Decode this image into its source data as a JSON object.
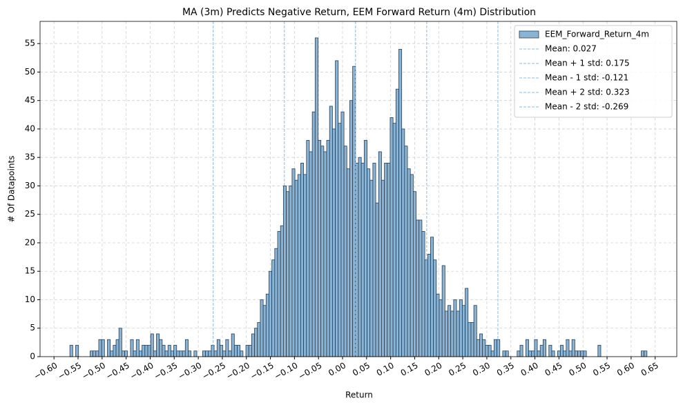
{
  "chart_data": {
    "type": "histogram",
    "title": "MA (3m) Predicts Negative Return, EEM Forward Return (4m) Distribution",
    "x_label": "Return",
    "y_label": "# Of Datapoints",
    "series": [
      {
        "name": "EEM_Forward_Return_4m",
        "color": "#8ab4d6",
        "edgecolor": "#2b3a4a",
        "bins": [
          -0.567,
          -0.561,
          -0.555,
          -0.549,
          -0.543,
          -0.537,
          -0.531,
          -0.525,
          -0.519,
          -0.513,
          -0.507,
          -0.501,
          -0.495,
          -0.489,
          -0.483,
          -0.477,
          -0.471,
          -0.465,
          -0.459,
          -0.453,
          -0.447,
          -0.441,
          -0.435,
          -0.429,
          -0.423,
          -0.417,
          -0.411,
          -0.405,
          -0.399,
          -0.393,
          -0.387,
          -0.381,
          -0.375,
          -0.369,
          -0.363,
          -0.357,
          -0.351,
          -0.345,
          -0.339,
          -0.333,
          -0.327,
          -0.321,
          -0.315,
          -0.309,
          -0.303,
          -0.297,
          -0.291,
          -0.285,
          -0.279,
          -0.273,
          -0.267,
          -0.261,
          -0.255,
          -0.249,
          -0.243,
          -0.237,
          -0.231,
          -0.225,
          -0.219,
          -0.213,
          -0.207,
          -0.201,
          -0.195,
          -0.189,
          -0.183,
          -0.177,
          -0.171,
          -0.165,
          -0.159,
          -0.153,
          -0.147,
          -0.141,
          -0.135,
          -0.129,
          -0.123,
          -0.117,
          -0.111,
          -0.105,
          -0.099,
          -0.093,
          -0.087,
          -0.081,
          -0.075,
          -0.069,
          -0.063,
          -0.057,
          -0.051,
          -0.045,
          -0.039,
          -0.033,
          -0.027,
          -0.021,
          -0.015,
          -0.009,
          -0.003,
          0.003,
          0.009,
          0.015,
          0.021,
          0.027,
          0.033,
          0.039,
          0.045,
          0.051,
          0.057,
          0.063,
          0.069,
          0.075,
          0.081,
          0.087,
          0.093,
          0.099,
          0.105,
          0.111,
          0.117,
          0.123,
          0.129,
          0.135,
          0.141,
          0.147,
          0.153,
          0.159,
          0.165,
          0.171,
          0.177,
          0.183,
          0.189,
          0.195,
          0.201,
          0.207,
          0.213,
          0.219,
          0.225,
          0.231,
          0.237,
          0.243,
          0.249,
          0.255,
          0.261,
          0.267,
          0.273,
          0.279,
          0.285,
          0.291,
          0.297,
          0.303,
          0.309,
          0.315,
          0.321,
          0.327,
          0.333,
          0.339,
          0.345,
          0.351,
          0.357,
          0.363,
          0.369,
          0.375,
          0.381,
          0.387,
          0.393,
          0.399,
          0.405,
          0.411,
          0.417,
          0.423,
          0.429,
          0.435,
          0.441,
          0.447,
          0.453,
          0.459,
          0.465,
          0.471,
          0.477,
          0.483,
          0.489,
          0.495,
          0.501,
          0.507,
          0.513,
          0.519,
          0.525,
          0.531,
          0.537,
          0.543,
          0.549,
          0.555,
          0.561,
          0.567,
          0.573,
          0.579,
          0.585,
          0.591,
          0.597,
          0.603,
          0.609,
          0.615,
          0.621,
          0.627,
          0.633
        ],
        "values": [
          2,
          0,
          2,
          0,
          0,
          0,
          0,
          1,
          1,
          1,
          3,
          3,
          0,
          3,
          1,
          2,
          3,
          5,
          1,
          1,
          0,
          3,
          1,
          3,
          1,
          2,
          2,
          2,
          4,
          1,
          4,
          3,
          2,
          1,
          2,
          1,
          2,
          1,
          1,
          1,
          3,
          1,
          0,
          1,
          0,
          0,
          1,
          1,
          1,
          2,
          1,
          3,
          2,
          1,
          3,
          1,
          4,
          2,
          2,
          1,
          0,
          2,
          2,
          4,
          5,
          6,
          10,
          9,
          11,
          15,
          17,
          19,
          22,
          23,
          30,
          29,
          30,
          33,
          31,
          32,
          34,
          32,
          38,
          36,
          43,
          56,
          38,
          37,
          36,
          38,
          44,
          40,
          52,
          41,
          43,
          37,
          33,
          45,
          51,
          34,
          35,
          34,
          38,
          33,
          31,
          34,
          27,
          36,
          31,
          34,
          34,
          42,
          41,
          47,
          54,
          40,
          37,
          33,
          32,
          29,
          24,
          24,
          22,
          17,
          18,
          21,
          17,
          11,
          10,
          16,
          8,
          9,
          8,
          10,
          8,
          10,
          9,
          12,
          6,
          6,
          9,
          3,
          4,
          3,
          2,
          2,
          1,
          3,
          3,
          0,
          1,
          1,
          0,
          0,
          0,
          1,
          2,
          0,
          3,
          1,
          1,
          3,
          1,
          2,
          3,
          0,
          2,
          1,
          0,
          1,
          2,
          1,
          3,
          1,
          3,
          1,
          1,
          1,
          1,
          0,
          0,
          0,
          0,
          2,
          0,
          0,
          0,
          0,
          0,
          0,
          0,
          0,
          0,
          0,
          0,
          0,
          0,
          0,
          1,
          1
        ]
      }
    ],
    "vlines": [
      {
        "name": "Mean: 0.027",
        "value": 0.027,
        "color": "#8ab8e0"
      },
      {
        "name": "Mean + 1 std: 0.175",
        "value": 0.175,
        "color": "#8ab8e0"
      },
      {
        "name": "Mean - 1 std: -0.121",
        "value": -0.121,
        "color": "#8ab8e0"
      },
      {
        "name": "Mean + 2 std: 0.323",
        "value": 0.323,
        "color": "#8ab8e0"
      },
      {
        "name": "Mean - 2 std: -0.269",
        "value": -0.269,
        "color": "#8ab8e0"
      }
    ],
    "xlim": [
      -0.629,
      0.695
    ],
    "ylim": [
      0,
      58.9
    ],
    "xticks": [
      {
        "value": -0.6,
        "label": "−0.60"
      },
      {
        "value": -0.55,
        "label": "−0.55"
      },
      {
        "value": -0.5,
        "label": "−0.50"
      },
      {
        "value": -0.45,
        "label": "−0.45"
      },
      {
        "value": -0.4,
        "label": "−0.40"
      },
      {
        "value": -0.35,
        "label": "−0.35"
      },
      {
        "value": -0.3,
        "label": "−0.30"
      },
      {
        "value": -0.25,
        "label": "−0.25"
      },
      {
        "value": -0.2,
        "label": "−0.20"
      },
      {
        "value": -0.15,
        "label": "−0.15"
      },
      {
        "value": -0.1,
        "label": "−0.10"
      },
      {
        "value": -0.05,
        "label": "−0.05"
      },
      {
        "value": 0,
        "label": "0.00"
      },
      {
        "value": 0.05,
        "label": "0.05"
      },
      {
        "value": 0.1,
        "label": "0.10"
      },
      {
        "value": 0.15,
        "label": "0.15"
      },
      {
        "value": 0.2,
        "label": "0.20"
      },
      {
        "value": 0.25,
        "label": "0.25"
      },
      {
        "value": 0.3,
        "label": "0.30"
      },
      {
        "value": 0.35,
        "label": "0.35"
      },
      {
        "value": 0.4,
        "label": "0.40"
      },
      {
        "value": 0.45,
        "label": "0.45"
      },
      {
        "value": 0.5,
        "label": "0.50"
      },
      {
        "value": 0.55,
        "label": "0.55"
      },
      {
        "value": 0.6,
        "label": "0.60"
      },
      {
        "value": 0.65,
        "label": "0.65"
      }
    ],
    "yticks": [
      0,
      5,
      10,
      15,
      20,
      25,
      30,
      35,
      40,
      45,
      50,
      55
    ],
    "grid": true,
    "legend": "upper right"
  }
}
